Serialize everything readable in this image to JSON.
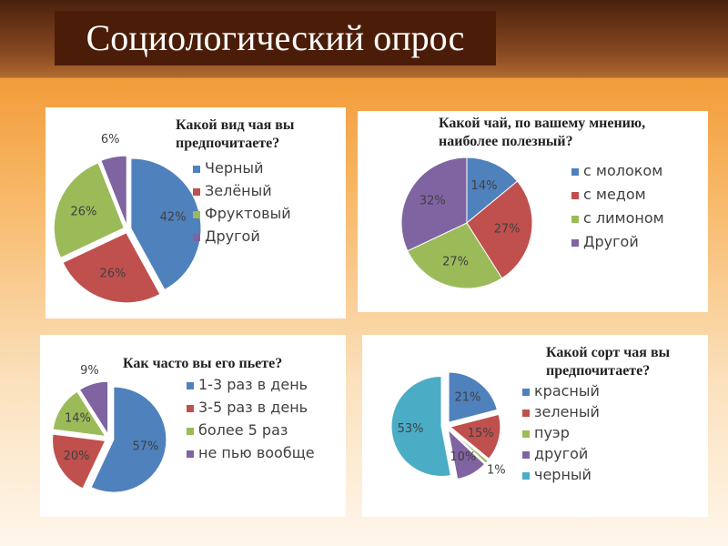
{
  "title": "Социологический опрос",
  "chart_data": [
    {
      "type": "pie",
      "title": "Какой вид чая вы предпочитаете?",
      "categories": [
        "Черный",
        "Зелёный",
        "Фруктовый",
        "Другой"
      ],
      "values": [
        42,
        26,
        26,
        6
      ],
      "value_labels": [
        "42%",
        "26%",
        "26%",
        "6%"
      ],
      "colors": [
        "#4f81bd",
        "#c0504d",
        "#9bbb59",
        "#8064a2"
      ]
    },
    {
      "type": "pie",
      "title": "Какой чай, по вашему мнению, наиболее полезный?",
      "categories": [
        "с молоком",
        "с медом",
        "с лимоном",
        "Другой"
      ],
      "values": [
        14,
        27,
        27,
        32
      ],
      "value_labels": [
        "14%",
        "27%",
        "27%",
        "32%"
      ],
      "colors": [
        "#4f81bd",
        "#c0504d",
        "#9bbb59",
        "#8064a2"
      ]
    },
    {
      "type": "pie",
      "title": "Как часто вы его пьете?",
      "categories": [
        "1-3 раз в день",
        "3-5 раз в день",
        "более 5 раз",
        "не пью вообще"
      ],
      "values": [
        57,
        20,
        14,
        9
      ],
      "value_labels": [
        "57%",
        "20%",
        "14%",
        "9%"
      ],
      "colors": [
        "#4f81bd",
        "#c0504d",
        "#9bbb59",
        "#8064a2"
      ]
    },
    {
      "type": "pie",
      "title": "Какой сорт чая вы предпочитаете?",
      "categories": [
        "красный",
        "зеленый",
        "пуэр",
        "другой",
        "черный"
      ],
      "values": [
        21,
        15,
        1,
        10,
        53
      ],
      "value_labels": [
        "21%",
        "15%",
        "1%",
        "10%",
        "53%"
      ],
      "colors": [
        "#4f81bd",
        "#c0504d",
        "#9bbb59",
        "#8064a2",
        "#4bacc6"
      ]
    }
  ]
}
